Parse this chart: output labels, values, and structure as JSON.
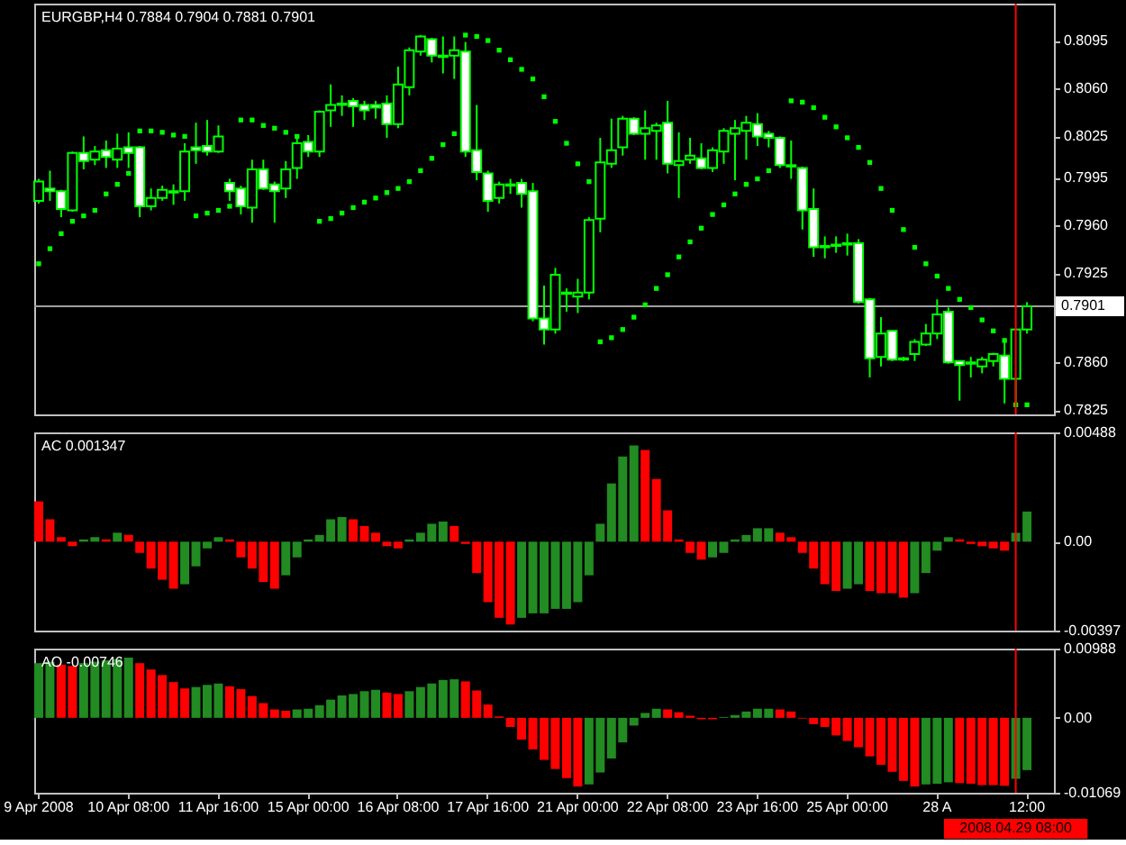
{
  "chart_data": [
    {
      "type": "candlestick",
      "title": "EURGBP,H4 0.7884 0.7904 0.7881 0.7901",
      "categories": [
        "9 Apr 2008",
        null,
        null,
        null,
        null,
        null,
        null,
        null,
        "10 Apr 08:00",
        null,
        null,
        null,
        null,
        null,
        null,
        null,
        "11 Apr 16:00",
        null,
        null,
        null,
        null,
        null,
        null,
        null,
        "15 Apr 00:00",
        null,
        null,
        null,
        null,
        null,
        null,
        null,
        "16 Apr 08:00",
        null,
        null,
        null,
        null,
        null,
        null,
        null,
        "17 Apr 16:00",
        null,
        null,
        null,
        null,
        null,
        null,
        null,
        "21 Apr 00:00",
        null,
        null,
        null,
        null,
        null,
        null,
        null,
        "22 Apr 08:00",
        null,
        null,
        null,
        null,
        null,
        null,
        null,
        "23 Apr 16:00",
        null,
        null,
        null,
        null,
        null,
        null,
        null,
        "25 Apr 00:00",
        null,
        null,
        null,
        null,
        null,
        null,
        null,
        "28 A",
        null,
        null,
        null,
        null,
        null,
        null,
        "2008.04.29 08:00",
        "12:00"
      ],
      "color": "#00ff00",
      "ohlc": [
        [
          0.7978,
          0.7994,
          0.7976,
          0.7992
        ],
        [
          0.7987,
          0.8,
          0.7978,
          0.7985
        ],
        [
          0.7985,
          0.7986,
          0.7966,
          0.7972
        ],
        [
          0.7971,
          0.8014,
          0.797,
          0.8013
        ],
        [
          0.8013,
          0.8025,
          0.8001,
          0.8007
        ],
        [
          0.8008,
          0.8018,
          0.8004,
          0.8014
        ],
        [
          0.8015,
          0.8022,
          0.8002,
          0.801
        ],
        [
          0.8008,
          0.8027,
          0.8002,
          0.8016
        ],
        [
          0.8017,
          0.8028,
          0.8002,
          0.8013
        ],
        [
          0.8017,
          0.8018,
          0.7966,
          0.7974
        ],
        [
          0.7974,
          0.7987,
          0.7971,
          0.798
        ],
        [
          0.798,
          0.7989,
          0.7978,
          0.7986
        ],
        [
          0.7985,
          0.799,
          0.7975,
          0.7984
        ],
        [
          0.7985,
          0.802,
          0.7978,
          0.8014
        ],
        [
          0.8017,
          0.8035,
          0.8005,
          0.8015
        ],
        [
          0.8018,
          0.8037,
          0.8011,
          0.8014
        ],
        [
          0.8014,
          0.8033,
          0.8013,
          0.8025
        ],
        [
          0.7991,
          0.7994,
          0.7978,
          0.7985
        ],
        [
          0.7987,
          0.7989,
          0.7968,
          0.7974
        ],
        [
          0.7973,
          0.8008,
          0.7962,
          0.8001
        ],
        [
          0.8001,
          0.8008,
          0.7986,
          0.7987
        ],
        [
          0.799,
          0.7992,
          0.7962,
          0.7985
        ],
        [
          0.7987,
          0.8007,
          0.798,
          0.8001
        ],
        [
          0.8002,
          0.8026,
          0.7994,
          0.802
        ],
        [
          0.8021,
          0.8026,
          0.801,
          0.8014
        ],
        [
          0.8014,
          0.8044,
          0.801,
          0.8043
        ],
        [
          0.8044,
          0.8063,
          0.8032,
          0.8048
        ],
        [
          0.8049,
          0.8055,
          0.804,
          0.8048
        ],
        [
          0.8051,
          0.8053,
          0.8032,
          0.8047
        ],
        [
          0.8048,
          0.8051,
          0.8037,
          0.8044
        ],
        [
          0.8048,
          0.8051,
          0.8038,
          0.8046
        ],
        [
          0.8049,
          0.8055,
          0.8024,
          0.8034
        ],
        [
          0.8034,
          0.8076,
          0.8031,
          0.8063
        ],
        [
          0.8061,
          0.809,
          0.8055,
          0.8088
        ],
        [
          0.8087,
          0.8099,
          0.8084,
          0.8098
        ],
        [
          0.8096,
          0.8097,
          0.8079,
          0.8084
        ],
        [
          0.8084,
          0.8098,
          0.8071,
          0.8083
        ],
        [
          0.8084,
          0.8098,
          0.8067,
          0.8088
        ],
        [
          0.8087,
          0.8094,
          0.801,
          0.8014
        ],
        [
          0.8015,
          0.8048,
          0.7993,
          0.7999
        ],
        [
          0.7998,
          0.8,
          0.797,
          0.7978
        ],
        [
          0.798,
          0.7992,
          0.7976,
          0.799
        ],
        [
          0.799,
          0.7994,
          0.7983,
          0.7989
        ],
        [
          0.7991,
          0.7994,
          0.7973,
          0.7983
        ],
        [
          0.7985,
          0.7991,
          0.789,
          0.7892
        ],
        [
          0.7892,
          0.7916,
          0.7873,
          0.7884
        ],
        [
          0.7884,
          0.7929,
          0.7881,
          0.7924
        ],
        [
          0.7911,
          0.7914,
          0.7897,
          0.791
        ],
        [
          0.7908,
          0.7921,
          0.7896,
          0.7911
        ],
        [
          0.7911,
          0.7966,
          0.7906,
          0.7964
        ],
        [
          0.7965,
          0.8024,
          0.7955,
          0.8006
        ],
        [
          0.8005,
          0.8038,
          0.8002,
          0.8015
        ],
        [
          0.8017,
          0.804,
          0.8011,
          0.8038
        ],
        [
          0.8038,
          0.8039,
          0.8026,
          0.8027
        ],
        [
          0.8027,
          0.8044,
          0.8008,
          0.8031
        ],
        [
          0.8029,
          0.8035,
          0.8008,
          0.8033
        ],
        [
          0.8035,
          0.8051,
          0.7998,
          0.8005
        ],
        [
          0.8004,
          0.8028,
          0.798,
          0.8007
        ],
        [
          0.8008,
          0.8024,
          0.8005,
          0.8011
        ],
        [
          0.8009,
          0.802,
          0.8001,
          0.8002
        ],
        [
          0.8002,
          0.8017,
          0.7999,
          0.8015
        ],
        [
          0.8014,
          0.8031,
          0.8005,
          0.8029
        ],
        [
          0.8027,
          0.8037,
          0.7993,
          0.8031
        ],
        [
          0.8029,
          0.804,
          0.8008,
          0.8035
        ],
        [
          0.8034,
          0.8042,
          0.8018,
          0.8025
        ],
        [
          0.8027,
          0.8029,
          0.8017,
          0.8024
        ],
        [
          0.8024,
          0.8025,
          0.8002,
          0.8004
        ],
        [
          0.8004,
          0.8022,
          0.7994,
          0.8003
        ],
        [
          0.8002,
          0.8003,
          0.7957,
          0.7971
        ],
        [
          0.7972,
          0.7987,
          0.7937,
          0.7944
        ],
        [
          0.7945,
          0.7952,
          0.7936,
          0.7944
        ],
        [
          0.7946,
          0.7952,
          0.794,
          0.7945
        ],
        [
          0.7946,
          0.7954,
          0.7938,
          0.7947
        ],
        [
          0.7947,
          0.795,
          0.7903,
          0.7904
        ],
        [
          0.7906,
          0.7907,
          0.7849,
          0.7863
        ],
        [
          0.7864,
          0.7893,
          0.7857,
          0.7881
        ],
        [
          0.7883,
          0.7883,
          0.7861,
          0.7862
        ],
        [
          0.7863,
          0.7864,
          0.7861,
          0.7862
        ],
        [
          0.7866,
          0.7877,
          0.7861,
          0.7875
        ],
        [
          0.7873,
          0.7888,
          0.7872,
          0.7881
        ],
        [
          0.7881,
          0.7906,
          0.7877,
          0.7895
        ],
        [
          0.7897,
          0.79,
          0.7859,
          0.786
        ],
        [
          0.7861,
          0.7861,
          0.7832,
          0.7858
        ],
        [
          0.7859,
          0.7864,
          0.7849,
          0.786
        ],
        [
          0.7857,
          0.7864,
          0.7852,
          0.7862
        ],
        [
          0.7861,
          0.7867,
          0.7857,
          0.7866
        ],
        [
          0.7865,
          0.7875,
          0.783,
          0.7848
        ],
        [
          0.7848,
          0.7885,
          0.7828,
          0.7884
        ],
        [
          0.7884,
          0.7904,
          0.7881,
          0.7901
        ]
      ],
      "series": [
        {
          "type": "scatter",
          "color": "#00ff00",
          "marker": "square",
          "values": [
            0.7932,
            0.7943,
            0.7954,
            0.7963,
            0.7967,
            0.7971,
            0.7983,
            0.799,
            0.7998,
            0.8029,
            0.8029,
            0.8028,
            0.8026,
            0.8025,
            0.7967,
            0.7969,
            0.7971,
            0.7974,
            0.8037,
            0.8037,
            0.8033,
            0.8031,
            0.8028,
            0.8025,
            null,
            0.7963,
            0.7965,
            0.7969,
            0.7973,
            0.7977,
            0.798,
            0.7984,
            0.7987,
            0.7992,
            0.8,
            0.8009,
            0.8019,
            0.8027,
            0.8099,
            0.8098,
            0.8095,
            0.8088,
            0.8081,
            0.8074,
            0.8067,
            0.8054,
            0.8036,
            0.802,
            0.8005,
            0.7992,
            0.7875,
            0.7878,
            0.7884,
            0.7893,
            0.7902,
            0.7914,
            0.7924,
            0.7937,
            0.7948,
            0.7958,
            0.7968,
            0.7975,
            0.7983,
            0.799,
            0.7994,
            0.8,
            null,
            0.8051,
            0.805,
            0.8046,
            0.8039,
            0.8032,
            0.8024,
            0.8017,
            0.8006,
            0.7987,
            0.7971,
            0.7957,
            0.7944,
            0.7932,
            0.7923,
            0.7914,
            0.7906,
            0.79,
            0.7891,
            0.7883,
            0.7876,
            0.7829,
            0.7829
          ]
        }
      ],
      "ylim": [
        0.7822,
        0.8122
      ],
      "yticks": [
        0.8095,
        {
          "value": 0.806,
          "label": "0.8060"
        },
        0.8025,
        0.7995,
        {
          "value": 0.796,
          "label": "0.7960"
        },
        0.7925,
        {
          "value": 0.786,
          "label": "0.7860"
        },
        0.7825
      ],
      "ref_lines": [
        {
          "axis": "y",
          "value": 0.7901,
          "label": "0.7901",
          "color": "#a0a0a0"
        },
        {
          "axis": "x",
          "value": "2008.04.29 08:00",
          "color": "#ff0000"
        }
      ],
      "tick_labels": "y"
    },
    {
      "type": "bar",
      "title": "AC 0.001347",
      "categories": [
        "9 Apr 2008",
        null,
        null,
        null,
        null,
        null,
        null,
        null,
        "10 Apr 08:00",
        null,
        null,
        null,
        null,
        null,
        null,
        null,
        "11 Apr 16:00",
        null,
        null,
        null,
        null,
        null,
        null,
        null,
        "15 Apr 00:00",
        null,
        null,
        null,
        null,
        null,
        null,
        null,
        "16 Apr 08:00",
        null,
        null,
        null,
        null,
        null,
        null,
        null,
        "17 Apr 16:00",
        null,
        null,
        null,
        null,
        null,
        null,
        null,
        "21 Apr 00:00",
        null,
        null,
        null,
        null,
        null,
        null,
        null,
        "22 Apr 08:00",
        null,
        null,
        null,
        null,
        null,
        null,
        null,
        "23 Apr 16:00",
        null,
        null,
        null,
        null,
        null,
        null,
        null,
        "25 Apr 00:00",
        null,
        null,
        null,
        null,
        null,
        null,
        null,
        "28 A",
        null,
        null,
        null,
        null,
        null,
        null,
        "2008.04.29 08:00",
        "12:00"
      ],
      "values": [
        0.0018,
        0.001,
        0.0002,
        -0.0002,
        0.0001,
        0.0002,
        0.0001,
        0.0004,
        0.0003,
        -0.0005,
        -0.0012,
        -0.0017,
        -0.0021,
        -0.0019,
        -0.0011,
        -0.0003,
        0.0002,
        0.0001,
        -0.0007,
        -0.0012,
        -0.0018,
        -0.0021,
        -0.0015,
        -0.0007,
        0.0001,
        0.0003,
        0.001,
        0.0011,
        0.001,
        0.0007,
        0.0004,
        -0.0002,
        -0.0003,
        0.0001,
        0.0004,
        0.0008,
        0.0009,
        0.0007,
        -0.0001,
        -0.0014,
        -0.0027,
        -0.0034,
        -0.0037,
        -0.0034,
        -0.0032,
        -0.0032,
        -0.003,
        -0.003,
        -0.0027,
        -0.0015,
        0.0008,
        0.0026,
        0.0038,
        0.0043,
        0.0041,
        0.0028,
        0.0014,
        0.0001,
        -0.0005,
        -0.0008,
        -0.0007,
        -0.0005,
        0.0001,
        0.0003,
        0.0006,
        0.0006,
        0.0004,
        0.0002,
        -0.0005,
        -0.0012,
        -0.0019,
        -0.0022,
        -0.0021,
        -0.0019,
        -0.0022,
        -0.0023,
        -0.0023,
        -0.0025,
        -0.0023,
        -0.0014,
        -0.0004,
        0.0002,
        0.0001,
        -0.0001,
        -0.0002,
        -0.0003,
        -0.0004,
        0.0004,
        0.001347
      ],
      "colors": [
        "#ff0000",
        "#ff0000",
        "#ff0000",
        "#ff0000",
        "#228b22",
        "#228b22",
        "#ff0000",
        "#228b22",
        "#ff0000",
        "#ff0000",
        "#ff0000",
        "#ff0000",
        "#ff0000",
        "#228b22",
        "#228b22",
        "#228b22",
        "#228b22",
        "#ff0000",
        "#ff0000",
        "#ff0000",
        "#ff0000",
        "#ff0000",
        "#228b22",
        "#228b22",
        "#228b22",
        "#228b22",
        "#228b22",
        "#228b22",
        "#ff0000",
        "#ff0000",
        "#ff0000",
        "#ff0000",
        "#ff0000",
        "#228b22",
        "#228b22",
        "#228b22",
        "#228b22",
        "#ff0000",
        "#ff0000",
        "#ff0000",
        "#ff0000",
        "#ff0000",
        "#ff0000",
        "#228b22",
        "#228b22",
        "#228b22",
        "#228b22",
        "#228b22",
        "#228b22",
        "#228b22",
        "#228b22",
        "#228b22",
        "#228b22",
        "#228b22",
        "#ff0000",
        "#ff0000",
        "#ff0000",
        "#ff0000",
        "#ff0000",
        "#ff0000",
        "#228b22",
        "#228b22",
        "#228b22",
        "#228b22",
        "#228b22",
        "#228b22",
        "#ff0000",
        "#ff0000",
        "#ff0000",
        "#ff0000",
        "#ff0000",
        "#ff0000",
        "#228b22",
        "#228b22",
        "#ff0000",
        "#ff0000",
        "#ff0000",
        "#ff0000",
        "#228b22",
        "#228b22",
        "#228b22",
        "#228b22",
        "#ff0000",
        "#ff0000",
        "#ff0000",
        "#ff0000",
        "#ff0000",
        "#228b22",
        "#228b22"
      ],
      "ylim": [
        -0.00397,
        0.00488
      ],
      "yticks": [
        0.00488,
        {
          "value": 0,
          "label": "0.00"
        },
        -0.00397
      ],
      "ref_lines": [
        {
          "axis": "x",
          "value": "2008.04.29 08:00",
          "color": "#ff0000"
        }
      ],
      "tick_labels": "y"
    },
    {
      "type": "bar",
      "title": "AO -0.00746",
      "categories": [
        "9 Apr 2008",
        null,
        null,
        null,
        null,
        null,
        null,
        null,
        "10 Apr 08:00",
        null,
        null,
        null,
        null,
        null,
        null,
        null,
        "11 Apr 16:00",
        null,
        null,
        null,
        null,
        null,
        null,
        null,
        "15 Apr 00:00",
        null,
        null,
        null,
        null,
        null,
        null,
        null,
        "16 Apr 08:00",
        null,
        null,
        null,
        null,
        null,
        null,
        null,
        "17 Apr 16:00",
        null,
        null,
        null,
        null,
        null,
        null,
        null,
        "21 Apr 00:00",
        null,
        null,
        null,
        null,
        null,
        null,
        null,
        "22 Apr 08:00",
        null,
        null,
        null,
        null,
        null,
        null,
        null,
        "23 Apr 16:00",
        null,
        null,
        null,
        null,
        null,
        null,
        null,
        "25 Apr 00:00",
        null,
        null,
        null,
        null,
        null,
        null,
        null,
        "28 A",
        null,
        null,
        null,
        null,
        null,
        null,
        "2008.04.29 08:00",
        "12:00"
      ],
      "values": [
        0.0078,
        0.008,
        0.0076,
        0.0074,
        0.0078,
        0.008,
        0.0082,
        0.0084,
        0.0086,
        0.0078,
        0.0069,
        0.0061,
        0.0051,
        0.0042,
        0.0044,
        0.0047,
        0.0049,
        0.0045,
        0.0041,
        0.0031,
        0.0021,
        0.0012,
        0.001,
        0.0012,
        0.0013,
        0.0018,
        0.0026,
        0.0032,
        0.0034,
        0.0038,
        0.004,
        0.0036,
        0.0034,
        0.0038,
        0.0044,
        0.0049,
        0.0054,
        0.0055,
        0.0052,
        0.0039,
        0.0019,
        0.0002,
        -0.0013,
        -0.0031,
        -0.0045,
        -0.006,
        -0.0073,
        -0.0086,
        -0.0098,
        -0.0095,
        -0.0078,
        -0.0058,
        -0.0035,
        -0.0011,
        0.0007,
        0.0013,
        0.0012,
        0.0008,
        0.0003,
        -0.0002,
        -0.0002,
        0.0001,
        0.0004,
        0.0009,
        0.0013,
        0.0013,
        0.0012,
        0.0009,
        -0.0001,
        -0.0009,
        -0.0013,
        -0.0025,
        -0.0033,
        -0.0042,
        -0.0055,
        -0.0067,
        -0.0077,
        -0.009,
        -0.0098,
        -0.0095,
        -0.0094,
        -0.0092,
        -0.0093,
        -0.0094,
        -0.0096,
        -0.0096,
        -0.0097,
        -0.0087,
        -0.00746
      ],
      "colors": [
        "#228b22",
        "#228b22",
        "#ff0000",
        "#ff0000",
        "#228b22",
        "#228b22",
        "#228b22",
        "#228b22",
        "#228b22",
        "#ff0000",
        "#ff0000",
        "#ff0000",
        "#ff0000",
        "#ff0000",
        "#228b22",
        "#228b22",
        "#228b22",
        "#ff0000",
        "#ff0000",
        "#ff0000",
        "#ff0000",
        "#ff0000",
        "#ff0000",
        "#228b22",
        "#228b22",
        "#228b22",
        "#228b22",
        "#228b22",
        "#228b22",
        "#228b22",
        "#228b22",
        "#ff0000",
        "#ff0000",
        "#228b22",
        "#228b22",
        "#228b22",
        "#228b22",
        "#228b22",
        "#ff0000",
        "#ff0000",
        "#ff0000",
        "#ff0000",
        "#ff0000",
        "#ff0000",
        "#ff0000",
        "#ff0000",
        "#ff0000",
        "#ff0000",
        "#ff0000",
        "#228b22",
        "#228b22",
        "#228b22",
        "#228b22",
        "#228b22",
        "#228b22",
        "#228b22",
        "#ff0000",
        "#ff0000",
        "#ff0000",
        "#ff0000",
        "#ff0000",
        "#228b22",
        "#228b22",
        "#228b22",
        "#228b22",
        "#228b22",
        "#ff0000",
        "#ff0000",
        "#ff0000",
        "#ff0000",
        "#ff0000",
        "#ff0000",
        "#ff0000",
        "#ff0000",
        "#ff0000",
        "#ff0000",
        "#ff0000",
        "#ff0000",
        "#ff0000",
        "#228b22",
        "#228b22",
        "#228b22",
        "#ff0000",
        "#ff0000",
        "#ff0000",
        "#ff0000",
        "#ff0000",
        "#228b22",
        "#228b22"
      ],
      "ylim": [
        -0.01069,
        0.00988
      ],
      "yticks": [
        0.00988,
        {
          "value": 0,
          "label": "0.00"
        },
        -0.01069
      ],
      "ref_lines": [
        {
          "axis": "x",
          "value": "2008.04.29 08:00",
          "color": "#ff0000"
        }
      ]
    }
  ]
}
